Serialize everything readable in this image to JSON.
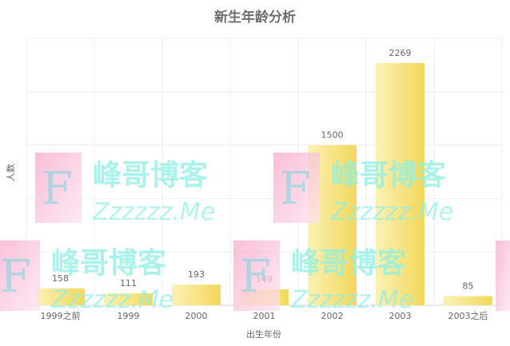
{
  "chart_data": {
    "type": "bar",
    "title": "新生年龄分析",
    "xlabel": "出生年份",
    "ylabel": "人数",
    "categories": [
      "1999之前",
      "1999",
      "2000",
      "2001",
      "2002",
      "2003",
      "2003之后"
    ],
    "values": [
      158,
      111,
      193,
      149,
      1500,
      2269,
      85
    ],
    "ylim": [
      0,
      2500
    ],
    "grid": true,
    "legend": "none",
    "colors": {
      "bar_light": "#fbf1b5",
      "bar_dark": "#f3d85a",
      "grid": "#eeeeee",
      "axis": "#d9d9d9"
    }
  },
  "watermark": {
    "logo_letter": "F",
    "brand": "峰哥博客",
    "domain": "Zzzzzz.Me",
    "colors": {
      "logo": "#f9b7d3",
      "text": "#8ff0e3"
    }
  }
}
